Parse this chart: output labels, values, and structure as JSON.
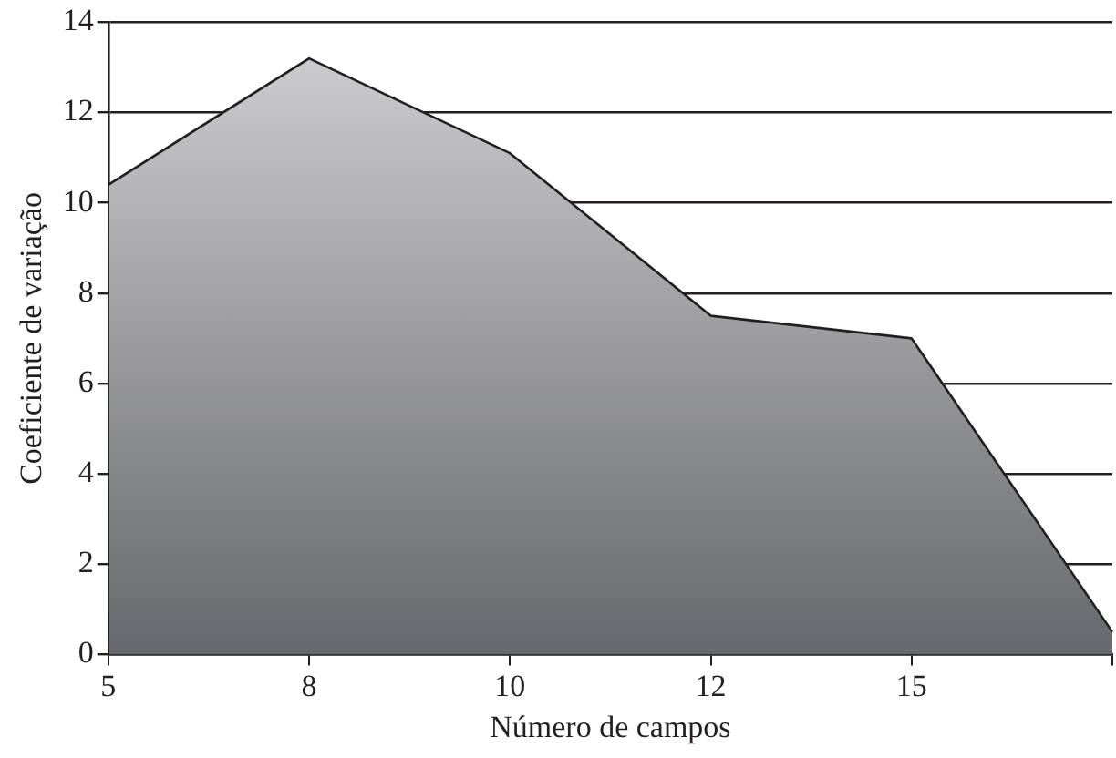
{
  "chart_data": {
    "type": "area",
    "xlabel": "Número de campos",
    "ylabel": "Coeficiente de variação",
    "categories": [
      "5",
      "8",
      "10",
      "12",
      "15",
      null
    ],
    "series": [
      {
        "color": "#98999d",
        "values": [
          10.4,
          13.2,
          11.1,
          7.5,
          7.0,
          0.5
        ]
      }
    ],
    "ylim": [
      0,
      14
    ],
    "yticks": [
      0,
      2,
      4,
      6,
      8,
      10,
      12,
      14
    ],
    "grid": "y",
    "legend": false
  }
}
